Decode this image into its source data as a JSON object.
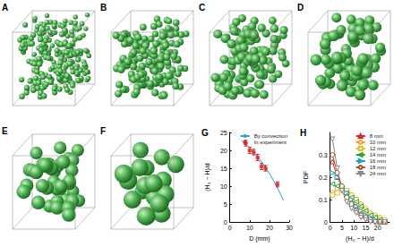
{
  "panels": [
    {
      "label": "A"
    },
    {
      "label": "B"
    },
    {
      "label": "C"
    },
    {
      "label": "D"
    },
    {
      "label": "E"
    },
    {
      "label": "F"
    }
  ],
  "chart_data": [
    {
      "type": "line",
      "title": "G",
      "x_label": "D (mm)",
      "y_label": "(H₀ − H)/d",
      "xlim": [
        0,
        30
      ],
      "xticks": [
        0,
        10,
        20,
        30
      ],
      "ylim": [
        0,
        25
      ],
      "yticks": [
        0,
        5,
        10,
        15,
        20,
        25
      ],
      "grid": false,
      "legend": "upper right",
      "series": [
        {
          "name": "By convection",
          "type": "line",
          "color": "#2a9fd6",
          "line_style": "solid",
          "x": [
            6,
            8,
            10,
            12,
            14,
            16,
            18,
            20,
            22,
            24,
            26,
            27
          ],
          "values": [
            22.8,
            21.8,
            20.7,
            19.5,
            18.2,
            16.8,
            15.2,
            13.5,
            11.6,
            9.5,
            7.2,
            6.0
          ]
        },
        {
          "name": "In experiment",
          "type": "scatter",
          "color": "#d62728",
          "marker": "circle",
          "x": [
            8,
            10,
            12,
            14,
            16,
            18,
            24
          ],
          "values": [
            22.0,
            20.0,
            19.5,
            18.0,
            15.5,
            15.0,
            10.5
          ],
          "errors": [
            0.8,
            0.9,
            0.8,
            0.9,
            0.9,
            0.8,
            0.7
          ]
        }
      ]
    },
    {
      "type": "line",
      "title": "H",
      "x_label": "(H₀ − H)/d",
      "y_label": "PDF",
      "xlim": [
        0,
        25
      ],
      "xticks": [
        0,
        5,
        10,
        15,
        20
      ],
      "ylim": [
        0,
        0.4
      ],
      "yticks": [
        0,
        0.1,
        0.2,
        0.3
      ],
      "grid": false,
      "legend": "upper right",
      "x": [
        1,
        3,
        5,
        7,
        9,
        11,
        13,
        15,
        17,
        19,
        21,
        23
      ],
      "series": [
        {
          "name": "8 mm",
          "color": "#d62728",
          "marker": "triangle-up",
          "values": [
            0.27,
            0.2,
            0.16,
            0.12,
            0.09,
            0.07,
            0.04,
            0.03,
            0.01,
            0.01,
            0.0,
            0.0
          ]
        },
        {
          "name": "10 mm",
          "color": "#f0a030",
          "marker": "circle",
          "values": [
            0.13,
            0.15,
            0.14,
            0.13,
            0.11,
            0.1,
            0.08,
            0.06,
            0.04,
            0.03,
            0.02,
            0.01
          ]
        },
        {
          "name": "12 mm",
          "color": "#e8c020",
          "marker": "square",
          "values": [
            0.12,
            0.13,
            0.15,
            0.14,
            0.12,
            0.1,
            0.07,
            0.05,
            0.03,
            0.02,
            0.01,
            0.0
          ]
        },
        {
          "name": "14 mm",
          "color": "#2ca02c",
          "marker": "triangle-left",
          "values": [
            0.17,
            0.16,
            0.15,
            0.13,
            0.11,
            0.09,
            0.07,
            0.05,
            0.03,
            0.02,
            0.01,
            0.0
          ]
        },
        {
          "name": "16 mm",
          "color": "#17a2b8",
          "marker": "triangle-right",
          "values": [
            0.22,
            0.2,
            0.16,
            0.13,
            0.1,
            0.07,
            0.05,
            0.03,
            0.02,
            0.01,
            0.0,
            0.0
          ]
        },
        {
          "name": "18 mm",
          "color": "#a0522d",
          "marker": "circle",
          "values": [
            0.3,
            0.22,
            0.16,
            0.11,
            0.08,
            0.05,
            0.03,
            0.02,
            0.01,
            0.0,
            0.0,
            0.0
          ]
        },
        {
          "name": "24 mm",
          "color": "#888888",
          "marker": "triangle-down",
          "values": [
            0.37,
            0.24,
            0.14,
            0.09,
            0.06,
            0.04,
            0.02,
            0.01,
            0.0,
            0.0,
            0.0,
            0.0
          ]
        }
      ]
    }
  ]
}
